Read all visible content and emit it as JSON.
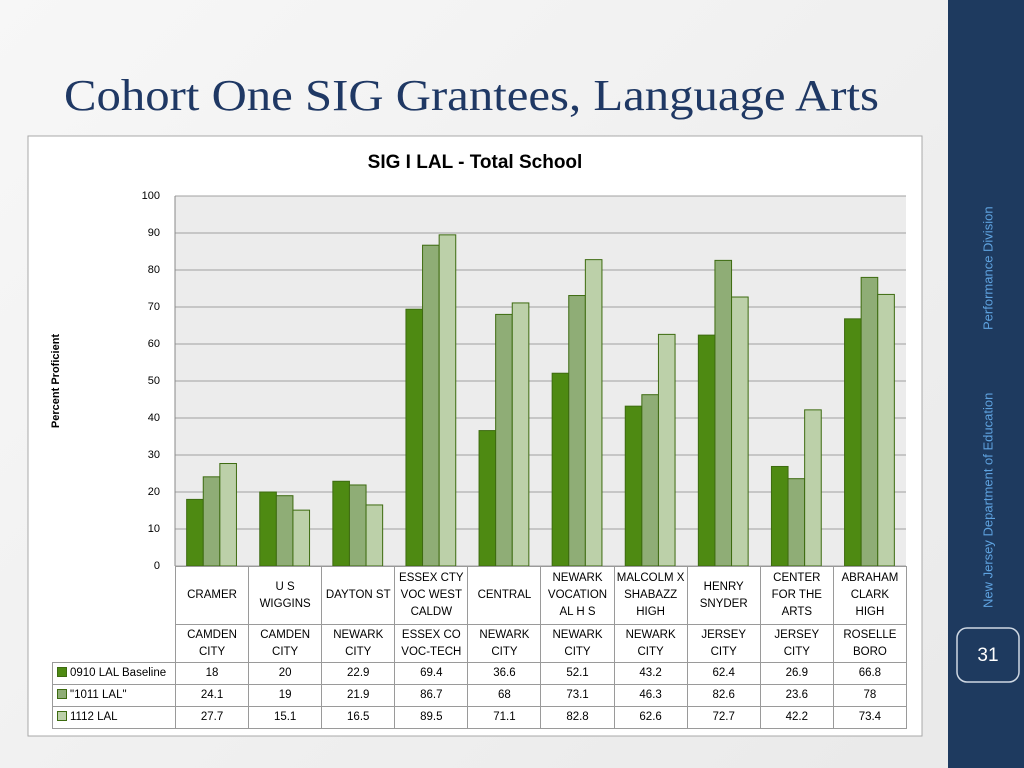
{
  "slide": {
    "title": "Cohort One SIG Grantees, Language Arts",
    "footer": "New Jersey Department of Education",
    "division": "Performance Division",
    "page_number": 31
  },
  "chart_data": {
    "type": "bar",
    "title": "SIG I LAL - Total School",
    "y_label": "Percent Proficient",
    "categories": [
      "CRAMER",
      "U S WIGGINS",
      "DAYTON ST",
      "ESSEX CTY VOC  WEST CALDW",
      "CENTRAL",
      "NEWARK VOCATION AL H S",
      "MALCOLM X SHABAZZ HIGH",
      "HENRY SNYDER",
      "CENTER FOR THE ARTS",
      "ABRAHAM CLARK HIGH"
    ],
    "districts": [
      "CAMDEN CITY",
      "CAMDEN CITY",
      "NEWARK CITY",
      "ESSEX CO VOC-TECH",
      "NEWARK CITY",
      "NEWARK CITY",
      "NEWARK CITY",
      "JERSEY CITY",
      "JERSEY CITY",
      "ROSELLE BORO"
    ],
    "series": [
      {
        "name": "0910 LAL Baseline",
        "color": "#4e8a12",
        "values": [
          18,
          20,
          22.9,
          69.4,
          36.6,
          52.1,
          43.2,
          62.4,
          26.9,
          66.8
        ]
      },
      {
        "name": "\"1011 LAL\"",
        "color": "#8fad76",
        "values": [
          24.1,
          19,
          21.9,
          86.7,
          68,
          73.1,
          46.3,
          82.6,
          23.6,
          78
        ]
      },
      {
        "name": "1112 LAL",
        "color": "#bcd0a9",
        "values": [
          27.7,
          15.1,
          16.5,
          89.5,
          71.1,
          82.8,
          62.6,
          72.7,
          42.2,
          73.4
        ]
      }
    ],
    "ylim": [
      0,
      100
    ],
    "yticks": [
      0,
      10,
      20,
      30,
      40,
      50,
      60,
      70,
      80,
      90,
      100
    ],
    "grid": true
  }
}
